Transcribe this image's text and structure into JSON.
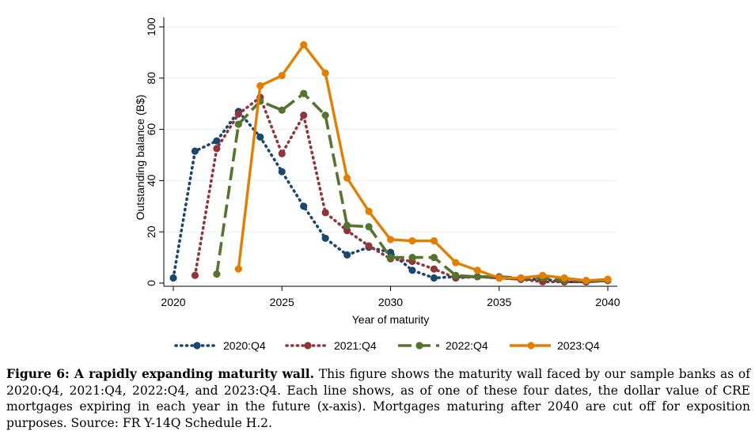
{
  "chart_data": {
    "type": "line",
    "title": "",
    "xlabel": "Year of maturity",
    "ylabel": "Outstanding balance (B$)",
    "xlim": [
      2020,
      2040
    ],
    "ylim": [
      0,
      100
    ],
    "xticks": [
      2020,
      2025,
      2030,
      2035,
      2040
    ],
    "yticks": [
      0,
      20,
      40,
      60,
      80,
      100
    ],
    "grid": "horizontal",
    "legend_position": "bottom",
    "series": [
      {
        "name": "2020:Q4",
        "color": "#1a476f",
        "line_style": "dotted",
        "x": [
          2020,
          2021,
          2022,
          2023,
          2024,
          2025,
          2026,
          2027,
          2028,
          2029,
          2030,
          2031,
          2032,
          2033,
          2034,
          2035,
          2036,
          2037,
          2038,
          2039,
          2040
        ],
        "values": [
          2,
          51.5,
          55.5,
          67,
          57,
          43.5,
          30,
          17.5,
          11,
          14,
          12,
          5,
          2,
          2.5,
          2.5,
          2,
          1.5,
          1.5,
          0.5,
          0.5,
          1
        ]
      },
      {
        "name": "2021:Q4",
        "color": "#90353b",
        "line_style": "dotted",
        "x": [
          2021,
          2022,
          2023,
          2024,
          2025,
          2026,
          2027,
          2028,
          2029,
          2030,
          2031,
          2032,
          2033,
          2034,
          2035,
          2036,
          2037,
          2038,
          2039,
          2040
        ],
        "values": [
          3,
          52.5,
          66,
          72.5,
          50.5,
          65.5,
          27.5,
          20.5,
          14.5,
          9.5,
          8.5,
          5.5,
          2,
          2.5,
          2,
          1.5,
          0.5,
          0.5,
          0.5,
          1
        ]
      },
      {
        "name": "2022:Q4",
        "color": "#55752f",
        "line_style": "dashed",
        "x": [
          2022,
          2023,
          2024,
          2025,
          2026,
          2027,
          2028,
          2029,
          2030,
          2031,
          2032,
          2033,
          2034,
          2035,
          2036,
          2037,
          2038,
          2039,
          2040
        ],
        "values": [
          3.5,
          62,
          71,
          67.5,
          74,
          65.5,
          22.5,
          22,
          10,
          10,
          10,
          3,
          2.5,
          2.5,
          2,
          2,
          1,
          1,
          1
        ]
      },
      {
        "name": "2023:Q4",
        "color": "#e37e00",
        "line_style": "solid",
        "x": [
          2023,
          2024,
          2025,
          2026,
          2027,
          2028,
          2029,
          2030,
          2031,
          2032,
          2033,
          2034,
          2035,
          2036,
          2037,
          2038,
          2039,
          2040
        ],
        "values": [
          5.5,
          77,
          81,
          93,
          82,
          41,
          28,
          17,
          16.5,
          16.5,
          8,
          5,
          2,
          2,
          3,
          2,
          1,
          1.5
        ]
      }
    ]
  },
  "caption": {
    "label": "Figure 6:   A rapidly expanding maturity wall.",
    "text": " This figure shows the maturity wall faced by our sample banks as of 2020:Q4, 2021:Q4, 2022:Q4, and 2023:Q4. Each line shows, as of one of these four dates, the dollar value of CRE mortgages expiring in each year in the future (x-axis). Mortgages maturing after 2040 are cut off for exposition purposes. Source: FR Y-14Q Schedule H.2."
  }
}
